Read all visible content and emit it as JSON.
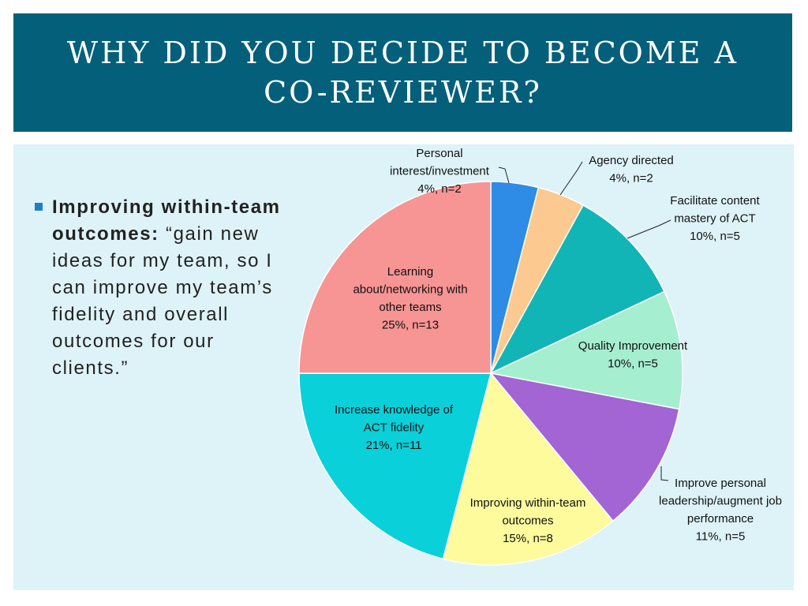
{
  "title": {
    "line1": "WHY DID YOU DECIDE TO BECOME A",
    "line2": "CO-REVIEWER?"
  },
  "bullet": {
    "bold_text": "Improving within-team outcomes:",
    "quote_text": " “gain new ideas for my team, so I can improve my team’s fidelity and overall outcomes for our clients.”"
  },
  "colors": {
    "title_bar": "#04607a",
    "panel": "#def3f8",
    "bullet_marker": "#1e7fc6"
  },
  "chart_data": {
    "type": "pie",
    "start_angle": "12 o'clock, clockwise",
    "slices": [
      {
        "label_lines": [
          "Personal",
          "interest/investment",
          "4%, n=2"
        ],
        "percent": 4,
        "n": 2,
        "color": "#2e8be6"
      },
      {
        "label_lines": [
          "Agency directed",
          "4%, n=2"
        ],
        "percent": 4,
        "n": 2,
        "color": "#fcc990"
      },
      {
        "label_lines": [
          "Facilitate content",
          "mastery of ACT",
          "10%, n=5"
        ],
        "percent": 10,
        "n": 5,
        "color": "#12b5b5"
      },
      {
        "label_lines": [
          "Quality Improvement",
          "10%, n=5"
        ],
        "percent": 10,
        "n": 5,
        "color": "#a5eed0"
      },
      {
        "label_lines": [
          "Improve personal",
          "leadership/augment job",
          "performance",
          "11%, n=5"
        ],
        "percent": 11,
        "n": 5,
        "color": "#a364d4"
      },
      {
        "label_lines": [
          "Improving within-team",
          "outcomes",
          "15%, n=8"
        ],
        "percent": 15,
        "n": 8,
        "color": "#fdfb9c"
      },
      {
        "label_lines": [
          "Increase knowledge of",
          "ACT fidelity",
          "21%, n=11"
        ],
        "percent": 21,
        "n": 11,
        "color": "#0ad0da"
      },
      {
        "label_lines": [
          "Learning",
          "about/networking with",
          "other teams",
          "25%, n=13"
        ],
        "percent": 25,
        "n": 13,
        "color": "#f79494"
      }
    ]
  }
}
